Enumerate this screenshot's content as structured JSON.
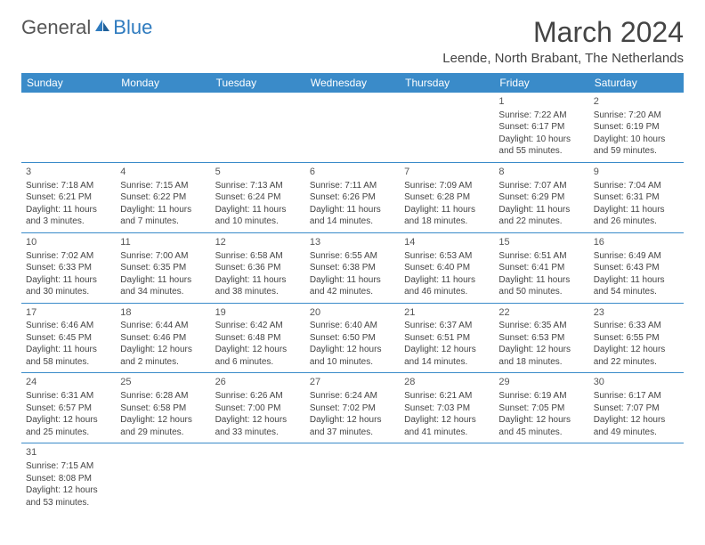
{
  "logo": {
    "text_general": "General",
    "text_blue": "Blue"
  },
  "title": "March 2024",
  "location": "Leende, North Brabant, The Netherlands",
  "colors": {
    "header_bg": "#3a8bc9",
    "header_text": "#ffffff",
    "row_divider": "#3a8bc9",
    "body_text": "#444444",
    "logo_gray": "#555555",
    "logo_blue": "#2f7bbf",
    "background": "#ffffff"
  },
  "typography": {
    "title_fontsize": 32,
    "location_fontsize": 15,
    "weekday_fontsize": 12,
    "daynum_fontsize": 11,
    "cell_fontsize": 10
  },
  "weekdays": [
    "Sunday",
    "Monday",
    "Tuesday",
    "Wednesday",
    "Thursday",
    "Friday",
    "Saturday"
  ],
  "weeks": [
    [
      null,
      null,
      null,
      null,
      null,
      {
        "n": "1",
        "sr": "Sunrise: 7:22 AM",
        "ss": "Sunset: 6:17 PM",
        "d1": "Daylight: 10 hours",
        "d2": "and 55 minutes."
      },
      {
        "n": "2",
        "sr": "Sunrise: 7:20 AM",
        "ss": "Sunset: 6:19 PM",
        "d1": "Daylight: 10 hours",
        "d2": "and 59 minutes."
      }
    ],
    [
      {
        "n": "3",
        "sr": "Sunrise: 7:18 AM",
        "ss": "Sunset: 6:21 PM",
        "d1": "Daylight: 11 hours",
        "d2": "and 3 minutes."
      },
      {
        "n": "4",
        "sr": "Sunrise: 7:15 AM",
        "ss": "Sunset: 6:22 PM",
        "d1": "Daylight: 11 hours",
        "d2": "and 7 minutes."
      },
      {
        "n": "5",
        "sr": "Sunrise: 7:13 AM",
        "ss": "Sunset: 6:24 PM",
        "d1": "Daylight: 11 hours",
        "d2": "and 10 minutes."
      },
      {
        "n": "6",
        "sr": "Sunrise: 7:11 AM",
        "ss": "Sunset: 6:26 PM",
        "d1": "Daylight: 11 hours",
        "d2": "and 14 minutes."
      },
      {
        "n": "7",
        "sr": "Sunrise: 7:09 AM",
        "ss": "Sunset: 6:28 PM",
        "d1": "Daylight: 11 hours",
        "d2": "and 18 minutes."
      },
      {
        "n": "8",
        "sr": "Sunrise: 7:07 AM",
        "ss": "Sunset: 6:29 PM",
        "d1": "Daylight: 11 hours",
        "d2": "and 22 minutes."
      },
      {
        "n": "9",
        "sr": "Sunrise: 7:04 AM",
        "ss": "Sunset: 6:31 PM",
        "d1": "Daylight: 11 hours",
        "d2": "and 26 minutes."
      }
    ],
    [
      {
        "n": "10",
        "sr": "Sunrise: 7:02 AM",
        "ss": "Sunset: 6:33 PM",
        "d1": "Daylight: 11 hours",
        "d2": "and 30 minutes."
      },
      {
        "n": "11",
        "sr": "Sunrise: 7:00 AM",
        "ss": "Sunset: 6:35 PM",
        "d1": "Daylight: 11 hours",
        "d2": "and 34 minutes."
      },
      {
        "n": "12",
        "sr": "Sunrise: 6:58 AM",
        "ss": "Sunset: 6:36 PM",
        "d1": "Daylight: 11 hours",
        "d2": "and 38 minutes."
      },
      {
        "n": "13",
        "sr": "Sunrise: 6:55 AM",
        "ss": "Sunset: 6:38 PM",
        "d1": "Daylight: 11 hours",
        "d2": "and 42 minutes."
      },
      {
        "n": "14",
        "sr": "Sunrise: 6:53 AM",
        "ss": "Sunset: 6:40 PM",
        "d1": "Daylight: 11 hours",
        "d2": "and 46 minutes."
      },
      {
        "n": "15",
        "sr": "Sunrise: 6:51 AM",
        "ss": "Sunset: 6:41 PM",
        "d1": "Daylight: 11 hours",
        "d2": "and 50 minutes."
      },
      {
        "n": "16",
        "sr": "Sunrise: 6:49 AM",
        "ss": "Sunset: 6:43 PM",
        "d1": "Daylight: 11 hours",
        "d2": "and 54 minutes."
      }
    ],
    [
      {
        "n": "17",
        "sr": "Sunrise: 6:46 AM",
        "ss": "Sunset: 6:45 PM",
        "d1": "Daylight: 11 hours",
        "d2": "and 58 minutes."
      },
      {
        "n": "18",
        "sr": "Sunrise: 6:44 AM",
        "ss": "Sunset: 6:46 PM",
        "d1": "Daylight: 12 hours",
        "d2": "and 2 minutes."
      },
      {
        "n": "19",
        "sr": "Sunrise: 6:42 AM",
        "ss": "Sunset: 6:48 PM",
        "d1": "Daylight: 12 hours",
        "d2": "and 6 minutes."
      },
      {
        "n": "20",
        "sr": "Sunrise: 6:40 AM",
        "ss": "Sunset: 6:50 PM",
        "d1": "Daylight: 12 hours",
        "d2": "and 10 minutes."
      },
      {
        "n": "21",
        "sr": "Sunrise: 6:37 AM",
        "ss": "Sunset: 6:51 PM",
        "d1": "Daylight: 12 hours",
        "d2": "and 14 minutes."
      },
      {
        "n": "22",
        "sr": "Sunrise: 6:35 AM",
        "ss": "Sunset: 6:53 PM",
        "d1": "Daylight: 12 hours",
        "d2": "and 18 minutes."
      },
      {
        "n": "23",
        "sr": "Sunrise: 6:33 AM",
        "ss": "Sunset: 6:55 PM",
        "d1": "Daylight: 12 hours",
        "d2": "and 22 minutes."
      }
    ],
    [
      {
        "n": "24",
        "sr": "Sunrise: 6:31 AM",
        "ss": "Sunset: 6:57 PM",
        "d1": "Daylight: 12 hours",
        "d2": "and 25 minutes."
      },
      {
        "n": "25",
        "sr": "Sunrise: 6:28 AM",
        "ss": "Sunset: 6:58 PM",
        "d1": "Daylight: 12 hours",
        "d2": "and 29 minutes."
      },
      {
        "n": "26",
        "sr": "Sunrise: 6:26 AM",
        "ss": "Sunset: 7:00 PM",
        "d1": "Daylight: 12 hours",
        "d2": "and 33 minutes."
      },
      {
        "n": "27",
        "sr": "Sunrise: 6:24 AM",
        "ss": "Sunset: 7:02 PM",
        "d1": "Daylight: 12 hours",
        "d2": "and 37 minutes."
      },
      {
        "n": "28",
        "sr": "Sunrise: 6:21 AM",
        "ss": "Sunset: 7:03 PM",
        "d1": "Daylight: 12 hours",
        "d2": "and 41 minutes."
      },
      {
        "n": "29",
        "sr": "Sunrise: 6:19 AM",
        "ss": "Sunset: 7:05 PM",
        "d1": "Daylight: 12 hours",
        "d2": "and 45 minutes."
      },
      {
        "n": "30",
        "sr": "Sunrise: 6:17 AM",
        "ss": "Sunset: 7:07 PM",
        "d1": "Daylight: 12 hours",
        "d2": "and 49 minutes."
      }
    ],
    [
      {
        "n": "31",
        "sr": "Sunrise: 7:15 AM",
        "ss": "Sunset: 8:08 PM",
        "d1": "Daylight: 12 hours",
        "d2": "and 53 minutes."
      },
      null,
      null,
      null,
      null,
      null,
      null
    ]
  ]
}
